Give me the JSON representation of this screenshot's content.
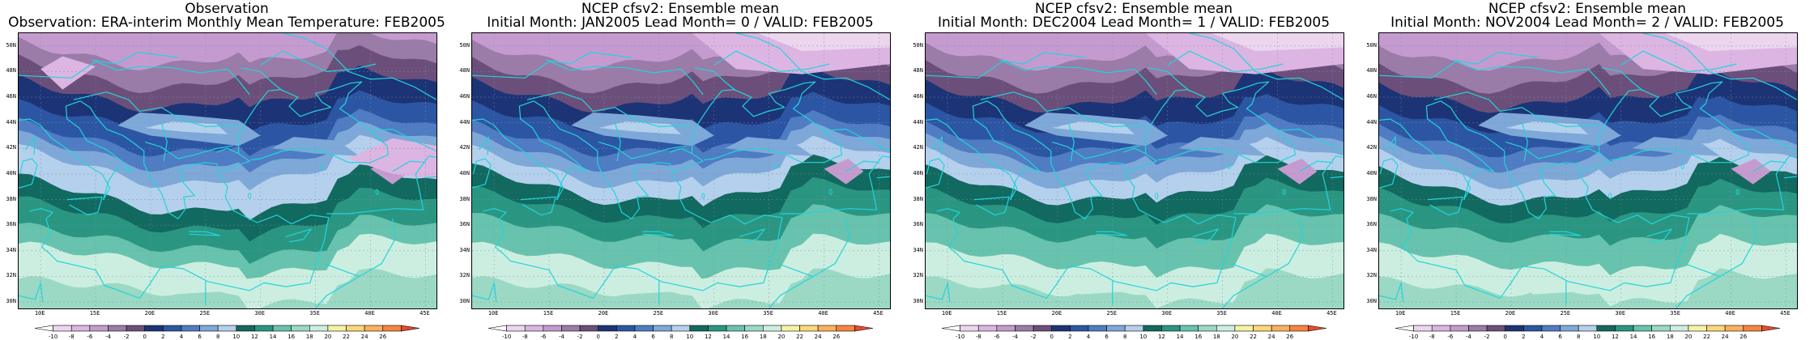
{
  "panels": [
    {
      "title": "Observation",
      "subtitle": "Observation: ERA-interim Monthly Mean Temperature: FEB2005",
      "variant": 0
    },
    {
      "title": "NCEP cfsv2: Ensemble mean",
      "subtitle": "Initial Month: JAN2005   Lead Month= 0 / VALID: FEB2005",
      "variant": 1
    },
    {
      "title": "NCEP cfsv2: Ensemble mean",
      "subtitle": "Initial Month: DEC2004   Lead Month= 1 / VALID: FEB2005",
      "variant": 2
    },
    {
      "title": "NCEP cfsv2: Ensemble mean",
      "subtitle": "Initial Month: NOV2004   Lead Month= 2 / VALID: FEB2005",
      "variant": 3
    }
  ],
  "lat_labels": [
    "50N",
    "48N",
    "46N",
    "44N",
    "42N",
    "40N",
    "38N",
    "36N",
    "34N",
    "32N",
    "30N"
  ],
  "lon_labels": [
    "10E",
    "15E",
    "20E",
    "25E",
    "30E",
    "35E",
    "40E",
    "45E"
  ],
  "colorbar": {
    "tick_labels": [
      "-10",
      "-8",
      "-6",
      "-4",
      "-2",
      "0",
      "2",
      "4",
      "6",
      "8",
      "10",
      "12",
      "14",
      "16",
      "18",
      "20",
      "22",
      "24",
      "26"
    ],
    "colors": [
      "#ffffff",
      "#ecd6ee",
      "#dcb5e3",
      "#c59bcf",
      "#9b7ba8",
      "#6b4f7a",
      "#1c3475",
      "#2c56a3",
      "#4f7cc2",
      "#7ea8d8",
      "#b5d0ec",
      "#12695f",
      "#2a9682",
      "#67c3ad",
      "#9bd9c4",
      "#cceee0",
      "#f7f3a5",
      "#fcd87a",
      "#fbb05c",
      "#f7843f",
      "#e64a2f"
    ]
  },
  "colors": {
    "coast": "#22d4dc",
    "grid": "#7a8fa8"
  }
}
